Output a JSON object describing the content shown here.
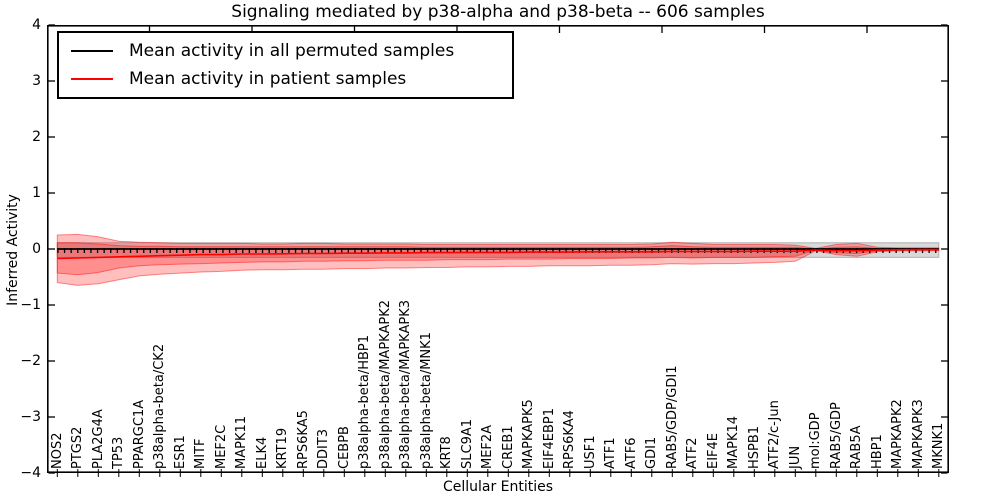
{
  "chart_data": {
    "type": "line",
    "title": "Signaling mediated by p38-alpha and p38-beta -- 606 samples",
    "xlabel": "Cellular Entities",
    "ylabel": "Inferred Activity",
    "ylim": [
      -4,
      4
    ],
    "grid": false,
    "legend_position": "upper left",
    "y_ticks": [
      4,
      3,
      2,
      1,
      0,
      -1,
      -2,
      -3,
      -4
    ],
    "y_tick_labels": [
      "4",
      "3",
      "2",
      "1",
      "0",
      "−1",
      "−2",
      "−3",
      "−4"
    ],
    "categories": [
      "NOS2",
      "PTGS2",
      "PLA2G4A",
      "TP53",
      "PPARGC1A",
      "p38alpha-beta/CK2",
      "ESR1",
      "MITF",
      "MEF2C",
      "MAPK11",
      "ELK4",
      "KRT19",
      "RPS6KA5",
      "DDIT3",
      "CEBPB",
      "p38alpha-beta/HBP1",
      "p38alpha-beta/MAPKAPK2",
      "p38alpha-beta/MAPKAPK3",
      "p38alpha-beta/MNK1",
      "KRT8",
      "SLC9A1",
      "MEF2A",
      "CREB1",
      "MAPKAPK5",
      "EIF4EBP1",
      "RPS6KA4",
      "USF1",
      "ATF1",
      "ATF6",
      "GDI1",
      "RAB5/GDP/GDI1",
      "ATF2",
      "EIF4E",
      "MAPK14",
      "HSPB1",
      "ATF2/c-Jun",
      "JUN",
      "mol:GDP",
      "RAB5/GDP",
      "RAB5A",
      "HBP1",
      "MAPKAPK2",
      "MAPKAPK3",
      "MKNK1"
    ],
    "legend": [
      {
        "label": "Mean activity in all permuted samples",
        "color": "#000000"
      },
      {
        "label": "Mean activity in patient samples",
        "color": "#ff0000"
      }
    ],
    "series": [
      {
        "name": "Mean activity in all permuted samples",
        "color": "#000000",
        "values": [
          0,
          0,
          0,
          0,
          0,
          0,
          0,
          0,
          0,
          0,
          0,
          0,
          0,
          0,
          0,
          0,
          0,
          0,
          0,
          0,
          0,
          0,
          0,
          0,
          0,
          0,
          0,
          0,
          0,
          0,
          0,
          0,
          0,
          0,
          0,
          0,
          0,
          0,
          0,
          0,
          0,
          0,
          0,
          0
        ]
      },
      {
        "name": "Mean activity in patient samples",
        "color": "#ff0000",
        "values": [
          -0.17,
          -0.16,
          -0.15,
          -0.14,
          -0.13,
          -0.12,
          -0.11,
          -0.1,
          -0.1,
          -0.09,
          -0.09,
          -0.085,
          -0.08,
          -0.08,
          -0.075,
          -0.075,
          -0.07,
          -0.07,
          -0.065,
          -0.065,
          -0.06,
          -0.06,
          -0.06,
          -0.055,
          -0.055,
          -0.055,
          -0.05,
          -0.05,
          -0.05,
          -0.05,
          -0.045,
          -0.045,
          -0.045,
          -0.045,
          -0.04,
          -0.04,
          -0.04,
          -0.02,
          -0.03,
          -0.03,
          -0.02,
          -0.015,
          -0.01,
          -0.01
        ]
      }
    ],
    "bands": [
      {
        "name": "permuted-range",
        "color": "#808080",
        "opacity": 0.3,
        "upper": [
          0.11,
          0.11,
          0.11,
          0.11,
          0.11,
          0.11,
          0.11,
          0.11,
          0.11,
          0.11,
          0.11,
          0.11,
          0.11,
          0.11,
          0.11,
          0.11,
          0.11,
          0.11,
          0.11,
          0.11,
          0.11,
          0.11,
          0.11,
          0.11,
          0.11,
          0.11,
          0.11,
          0.11,
          0.11,
          0.11,
          0.11,
          0.11,
          0.11,
          0.11,
          0.11,
          0.11,
          0.11,
          0.11,
          0.11,
          0.11,
          0.11,
          0.11,
          0.11,
          0.11
        ],
        "lower": [
          -0.15,
          -0.15,
          -0.15,
          -0.15,
          -0.15,
          -0.15,
          -0.15,
          -0.15,
          -0.15,
          -0.15,
          -0.15,
          -0.15,
          -0.15,
          -0.15,
          -0.15,
          -0.15,
          -0.15,
          -0.15,
          -0.15,
          -0.15,
          -0.15,
          -0.15,
          -0.15,
          -0.15,
          -0.15,
          -0.15,
          -0.15,
          -0.15,
          -0.15,
          -0.15,
          -0.15,
          -0.15,
          -0.15,
          -0.15,
          -0.15,
          -0.15,
          -0.15,
          -0.15,
          -0.15,
          -0.15,
          -0.15,
          -0.15,
          -0.15,
          -0.15
        ]
      },
      {
        "name": "patient-range-outer",
        "color": "#ff0000",
        "opacity": 0.25,
        "upper": [
          0.25,
          0.26,
          0.22,
          0.14,
          0.12,
          0.11,
          0.1,
          0.1,
          0.1,
          0.1,
          0.09,
          0.09,
          0.1,
          0.1,
          0.09,
          0.09,
          0.09,
          0.09,
          0.08,
          0.08,
          0.08,
          0.08,
          0.08,
          0.08,
          0.08,
          0.08,
          0.08,
          0.08,
          0.08,
          0.09,
          0.12,
          0.1,
          0.08,
          0.08,
          0.08,
          0.08,
          0.07,
          0.01,
          0.08,
          0.1,
          0.03,
          0.02,
          0.02,
          0.02
        ],
        "lower": [
          -0.6,
          -0.65,
          -0.62,
          -0.55,
          -0.48,
          -0.45,
          -0.43,
          -0.41,
          -0.4,
          -0.38,
          -0.37,
          -0.37,
          -0.36,
          -0.36,
          -0.35,
          -0.35,
          -0.34,
          -0.34,
          -0.33,
          -0.33,
          -0.32,
          -0.32,
          -0.31,
          -0.31,
          -0.3,
          -0.3,
          -0.3,
          -0.29,
          -0.29,
          -0.28,
          -0.26,
          -0.27,
          -0.26,
          -0.26,
          -0.25,
          -0.24,
          -0.22,
          -0.03,
          -0.1,
          -0.13,
          -0.05,
          -0.03,
          -0.03,
          -0.03
        ]
      },
      {
        "name": "patient-range-inner",
        "color": "#ff0000",
        "opacity": 0.25,
        "upper": [
          0.11,
          0.11,
          0.09,
          0.06,
          0.05,
          0.05,
          0.04,
          0.04,
          0.04,
          0.04,
          0.04,
          0.04,
          0.04,
          0.04,
          0.04,
          0.04,
          0.04,
          0.04,
          0.03,
          0.03,
          0.03,
          0.03,
          0.03,
          0.03,
          0.03,
          0.03,
          0.03,
          0.03,
          0.03,
          0.04,
          0.06,
          0.04,
          0.03,
          0.03,
          0.03,
          0.03,
          0.03,
          0.0,
          0.03,
          0.04,
          0.01,
          0.01,
          0.01,
          0.01
        ],
        "lower": [
          -0.43,
          -0.46,
          -0.42,
          -0.34,
          -0.3,
          -0.28,
          -0.27,
          -0.26,
          -0.25,
          -0.24,
          -0.23,
          -0.23,
          -0.22,
          -0.22,
          -0.21,
          -0.21,
          -0.2,
          -0.2,
          -0.2,
          -0.19,
          -0.19,
          -0.19,
          -0.18,
          -0.18,
          -0.18,
          -0.17,
          -0.17,
          -0.17,
          -0.16,
          -0.16,
          -0.15,
          -0.16,
          -0.15,
          -0.15,
          -0.15,
          -0.14,
          -0.13,
          -0.02,
          -0.07,
          -0.08,
          -0.03,
          -0.02,
          -0.02,
          -0.02
        ]
      }
    ]
  }
}
